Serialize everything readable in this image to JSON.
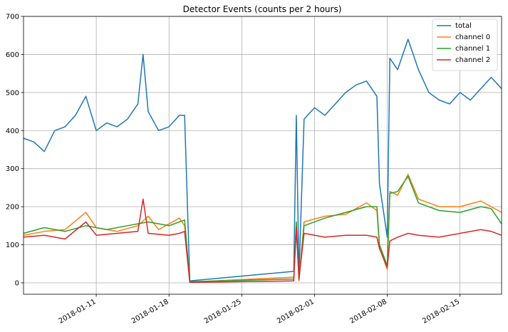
{
  "chart_data": {
    "type": "line",
    "title": "Detector Events (counts per 2 hours)",
    "xlabel": "",
    "ylabel": "",
    "ylim": [
      -30,
      700
    ],
    "xlim": [
      "2018-01-04",
      "2018-02-19"
    ],
    "grid": true,
    "legend_position": "top-right",
    "y_ticks": [
      0,
      100,
      200,
      300,
      400,
      500,
      600,
      700
    ],
    "x_ticks": [
      "2018-01-11",
      "2018-01-18",
      "2018-01-25",
      "2018-02-01",
      "2018-02-08",
      "2018-02-15"
    ],
    "series": [
      {
        "name": "total",
        "color": "#1f77b4",
        "points": [
          [
            "2018-01-04",
            380
          ],
          [
            "2018-01-05",
            370
          ],
          [
            "2018-01-06",
            345
          ],
          [
            "2018-01-07",
            400
          ],
          [
            "2018-01-08",
            410
          ],
          [
            "2018-01-09",
            440
          ],
          [
            "2018-01-10",
            490
          ],
          [
            "2018-01-11",
            400
          ],
          [
            "2018-01-12",
            420
          ],
          [
            "2018-01-13",
            410
          ],
          [
            "2018-01-14",
            430
          ],
          [
            "2018-01-15",
            470
          ],
          [
            "2018-01-15 12:00",
            600
          ],
          [
            "2018-01-16",
            450
          ],
          [
            "2018-01-17",
            400
          ],
          [
            "2018-01-18",
            410
          ],
          [
            "2018-01-19",
            440
          ],
          [
            "2018-01-19 12:00",
            440
          ],
          [
            "2018-01-20",
            5
          ],
          [
            "2018-01-30",
            30
          ],
          [
            "2018-01-30 06:00",
            440
          ],
          [
            "2018-01-30 12:00",
            20
          ],
          [
            "2018-01-31",
            430
          ],
          [
            "2018-02-01",
            460
          ],
          [
            "2018-02-02",
            440
          ],
          [
            "2018-02-03",
            470
          ],
          [
            "2018-02-04",
            500
          ],
          [
            "2018-02-05",
            520
          ],
          [
            "2018-02-06",
            530
          ],
          [
            "2018-02-07",
            490
          ],
          [
            "2018-02-07 06:00",
            260
          ],
          [
            "2018-02-08",
            120
          ],
          [
            "2018-02-08 06:00",
            590
          ],
          [
            "2018-02-09",
            560
          ],
          [
            "2018-02-10",
            640
          ],
          [
            "2018-02-11",
            560
          ],
          [
            "2018-02-12",
            500
          ],
          [
            "2018-02-13",
            480
          ],
          [
            "2018-02-14",
            470
          ],
          [
            "2018-02-15",
            500
          ],
          [
            "2018-02-16",
            480
          ],
          [
            "2018-02-17",
            510
          ],
          [
            "2018-02-18",
            540
          ],
          [
            "2018-02-19",
            510
          ]
        ]
      },
      {
        "name": "channel 0",
        "color": "#ff7f0e",
        "points": [
          [
            "2018-01-04",
            125
          ],
          [
            "2018-01-06",
            135
          ],
          [
            "2018-01-08",
            140
          ],
          [
            "2018-01-10",
            185
          ],
          [
            "2018-01-11",
            145
          ],
          [
            "2018-01-13",
            135
          ],
          [
            "2018-01-15",
            150
          ],
          [
            "2018-01-16",
            175
          ],
          [
            "2018-01-17",
            140
          ],
          [
            "2018-01-19",
            170
          ],
          [
            "2018-01-19 12:00",
            150
          ],
          [
            "2018-01-20",
            2
          ],
          [
            "2018-01-30",
            15
          ],
          [
            "2018-01-30 06:00",
            155
          ],
          [
            "2018-01-30 12:00",
            5
          ],
          [
            "2018-01-31",
            160
          ],
          [
            "2018-02-02",
            175
          ],
          [
            "2018-02-04",
            180
          ],
          [
            "2018-02-06",
            210
          ],
          [
            "2018-02-07",
            190
          ],
          [
            "2018-02-07 06:00",
            95
          ],
          [
            "2018-02-08",
            35
          ],
          [
            "2018-02-08 06:00",
            240
          ],
          [
            "2018-02-09",
            230
          ],
          [
            "2018-02-10",
            285
          ],
          [
            "2018-02-11",
            220
          ],
          [
            "2018-02-13",
            200
          ],
          [
            "2018-02-15",
            200
          ],
          [
            "2018-02-17",
            215
          ],
          [
            "2018-02-18",
            200
          ],
          [
            "2018-02-19",
            185
          ]
        ]
      },
      {
        "name": "channel 1",
        "color": "#2ca02c",
        "points": [
          [
            "2018-01-04",
            130
          ],
          [
            "2018-01-06",
            145
          ],
          [
            "2018-01-08",
            135
          ],
          [
            "2018-01-10",
            150
          ],
          [
            "2018-01-12",
            140
          ],
          [
            "2018-01-14",
            150
          ],
          [
            "2018-01-16",
            160
          ],
          [
            "2018-01-18",
            150
          ],
          [
            "2018-01-19",
            160
          ],
          [
            "2018-01-19 12:00",
            165
          ],
          [
            "2018-01-20",
            3
          ],
          [
            "2018-01-30",
            10
          ],
          [
            "2018-01-30 06:00",
            160
          ],
          [
            "2018-01-30 12:00",
            8
          ],
          [
            "2018-01-31",
            150
          ],
          [
            "2018-02-02",
            170
          ],
          [
            "2018-02-04",
            185
          ],
          [
            "2018-02-06",
            200
          ],
          [
            "2018-02-07",
            200
          ],
          [
            "2018-02-07 06:00",
            100
          ],
          [
            "2018-02-08",
            45
          ],
          [
            "2018-02-08 06:00",
            235
          ],
          [
            "2018-02-09",
            240
          ],
          [
            "2018-02-10",
            280
          ],
          [
            "2018-02-11",
            210
          ],
          [
            "2018-02-13",
            190
          ],
          [
            "2018-02-15",
            185
          ],
          [
            "2018-02-17",
            200
          ],
          [
            "2018-02-18",
            195
          ],
          [
            "2018-02-19",
            155
          ]
        ]
      },
      {
        "name": "channel 2",
        "color": "#d62728",
        "points": [
          [
            "2018-01-04",
            120
          ],
          [
            "2018-01-06",
            125
          ],
          [
            "2018-01-08",
            115
          ],
          [
            "2018-01-10",
            160
          ],
          [
            "2018-01-11",
            125
          ],
          [
            "2018-01-13",
            130
          ],
          [
            "2018-01-15",
            135
          ],
          [
            "2018-01-15 12:00",
            220
          ],
          [
            "2018-01-16",
            130
          ],
          [
            "2018-01-18",
            125
          ],
          [
            "2018-01-19",
            130
          ],
          [
            "2018-01-19 12:00",
            135
          ],
          [
            "2018-01-20",
            1
          ],
          [
            "2018-01-30",
            5
          ],
          [
            "2018-01-30 06:00",
            145
          ],
          [
            "2018-01-30 12:00",
            10
          ],
          [
            "2018-01-31",
            130
          ],
          [
            "2018-02-02",
            120
          ],
          [
            "2018-02-04",
            125
          ],
          [
            "2018-02-06",
            125
          ],
          [
            "2018-02-07",
            120
          ],
          [
            "2018-02-07 06:00",
            90
          ],
          [
            "2018-02-08",
            40
          ],
          [
            "2018-02-08 06:00",
            110
          ],
          [
            "2018-02-09",
            120
          ],
          [
            "2018-02-10",
            130
          ],
          [
            "2018-02-11",
            125
          ],
          [
            "2018-02-13",
            120
          ],
          [
            "2018-02-15",
            130
          ],
          [
            "2018-02-17",
            140
          ],
          [
            "2018-02-18",
            135
          ],
          [
            "2018-02-19",
            125
          ]
        ]
      }
    ]
  }
}
